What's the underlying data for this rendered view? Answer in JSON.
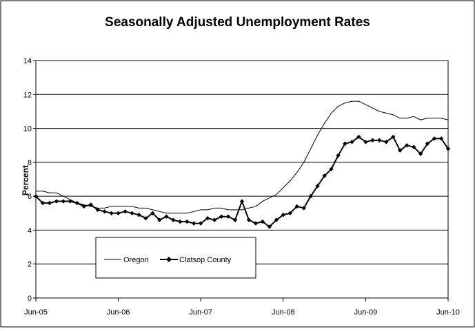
{
  "chart_data": {
    "type": "line",
    "title": "Seasonally Adjusted Unemployment Rates",
    "xlabel": "",
    "ylabel": "Percent",
    "ylim": [
      0,
      14
    ],
    "yticks": [
      "0",
      "2",
      "4",
      "6",
      "8",
      "10",
      "12",
      "14"
    ],
    "xlim": [
      "2005-06",
      "2010-06"
    ],
    "xtick_labels": [
      "Jun-05",
      "Jun-06",
      "Jun-07",
      "Jun-08",
      "Jun-09",
      "Jun-10"
    ],
    "grid": "horizontal",
    "legend_position": "lower-left",
    "x": [
      "2005-06",
      "2005-07",
      "2005-08",
      "2005-09",
      "2005-10",
      "2005-11",
      "2005-12",
      "2006-01",
      "2006-02",
      "2006-03",
      "2006-04",
      "2006-05",
      "2006-06",
      "2006-07",
      "2006-08",
      "2006-09",
      "2006-10",
      "2006-11",
      "2006-12",
      "2007-01",
      "2007-02",
      "2007-03",
      "2007-04",
      "2007-05",
      "2007-06",
      "2007-07",
      "2007-08",
      "2007-09",
      "2007-10",
      "2007-11",
      "2007-12",
      "2008-01",
      "2008-02",
      "2008-03",
      "2008-04",
      "2008-05",
      "2008-06",
      "2008-07",
      "2008-08",
      "2008-09",
      "2008-10",
      "2008-11",
      "2008-12",
      "2009-01",
      "2009-02",
      "2009-03",
      "2009-04",
      "2009-05",
      "2009-06",
      "2009-07",
      "2009-08",
      "2009-09",
      "2009-10",
      "2009-11",
      "2009-12",
      "2010-01",
      "2010-02",
      "2010-03",
      "2010-04",
      "2010-05",
      "2010-06"
    ],
    "series": [
      {
        "name": "Oregon",
        "color": "#000000",
        "marker": "none",
        "values": [
          6.3,
          6.3,
          6.2,
          6.2,
          6.0,
          5.8,
          5.6,
          5.5,
          5.4,
          5.3,
          5.3,
          5.4,
          5.4,
          5.4,
          5.4,
          5.3,
          5.3,
          5.2,
          5.1,
          5.0,
          5.0,
          5.0,
          5.0,
          5.1,
          5.2,
          5.2,
          5.3,
          5.3,
          5.2,
          5.2,
          5.2,
          5.3,
          5.4,
          5.7,
          5.9,
          6.1,
          6.5,
          6.9,
          7.4,
          8.0,
          8.8,
          9.6,
          10.3,
          10.9,
          11.3,
          11.5,
          11.6,
          11.6,
          11.4,
          11.2,
          11.0,
          10.9,
          10.8,
          10.6,
          10.6,
          10.7,
          10.5,
          10.6,
          10.6,
          10.6,
          10.5
        ]
      },
      {
        "name": "Clatsop County",
        "color": "#000000",
        "marker": "diamond",
        "values": [
          6.0,
          5.6,
          5.6,
          5.7,
          5.7,
          5.7,
          5.6,
          5.4,
          5.5,
          5.2,
          5.1,
          5.0,
          5.0,
          5.1,
          5.0,
          4.9,
          4.7,
          5.0,
          4.6,
          4.8,
          4.6,
          4.5,
          4.5,
          4.4,
          4.4,
          4.7,
          4.6,
          4.8,
          4.8,
          4.6,
          5.7,
          4.6,
          4.4,
          4.5,
          4.2,
          4.6,
          4.9,
          5.0,
          5.4,
          5.3,
          6.0,
          6.6,
          7.2,
          7.6,
          8.4,
          9.1,
          9.2,
          9.5,
          9.2,
          9.3,
          9.3,
          9.2,
          9.5,
          8.7,
          9.0,
          8.9,
          8.5,
          9.1,
          9.4,
          9.4,
          8.8
        ]
      }
    ]
  }
}
